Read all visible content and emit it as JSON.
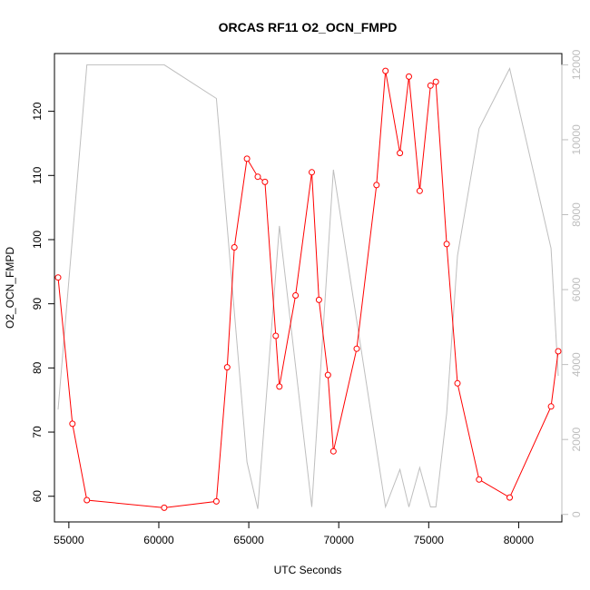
{
  "chart_data": {
    "type": "line",
    "title": "ORCAS RF11 O2_OCN_FMPD",
    "xlabel": "UTC Seconds",
    "ylabel": "O2_OCN_FMPD",
    "xlim": [
      54200,
      82400
    ],
    "ylim": [
      56,
      129
    ],
    "y2lim": [
      -200,
      12300
    ],
    "x_ticks": [
      55000,
      60000,
      65000,
      70000,
      75000,
      80000
    ],
    "y_ticks": [
      60,
      70,
      80,
      90,
      100,
      110,
      120
    ],
    "y2_ticks": [
      0,
      2000,
      4000,
      6000,
      8000,
      10000,
      12000
    ],
    "colors": {
      "primary": "#ff0000",
      "secondary": "#bebebe",
      "axis": "#000000"
    },
    "series": [
      {
        "axis": "left",
        "style": "line-points",
        "x": [
          54400,
          55200,
          56000,
          60300,
          63200,
          63800,
          64200,
          64900,
          65500,
          65900,
          66500,
          66700,
          67600,
          68500,
          68900,
          69400,
          69700,
          71000,
          72100,
          72600,
          73400,
          73900,
          74500,
          75100,
          75400,
          76000,
          76600,
          77800,
          79500,
          81800,
          82200
        ],
        "values": [
          94.1,
          71.3,
          59.4,
          58.2,
          59.2,
          80.1,
          98.8,
          112.6,
          109.8,
          109.0,
          85.0,
          77.1,
          91.3,
          110.5,
          90.6,
          78.9,
          67.0,
          83.0,
          108.5,
          126.3,
          113.5,
          125.4,
          107.6,
          124.0,
          124.6,
          99.3,
          77.6,
          62.6,
          59.8,
          74.0,
          82.6
        ]
      },
      {
        "axis": "right",
        "style": "line",
        "x": [
          54400,
          56000,
          60300,
          63200,
          64900,
          65500,
          66700,
          68500,
          69700,
          72600,
          73400,
          73900,
          74500,
          75100,
          75400,
          76000,
          76600,
          77800,
          79500,
          81800,
          82200
        ],
        "values": [
          2800,
          12000,
          12000,
          11100,
          1400,
          150,
          7700,
          200,
          9200,
          200,
          1200,
          200,
          1250,
          200,
          200,
          2700,
          6900,
          10300,
          11900,
          7100,
          3700
        ]
      }
    ]
  }
}
